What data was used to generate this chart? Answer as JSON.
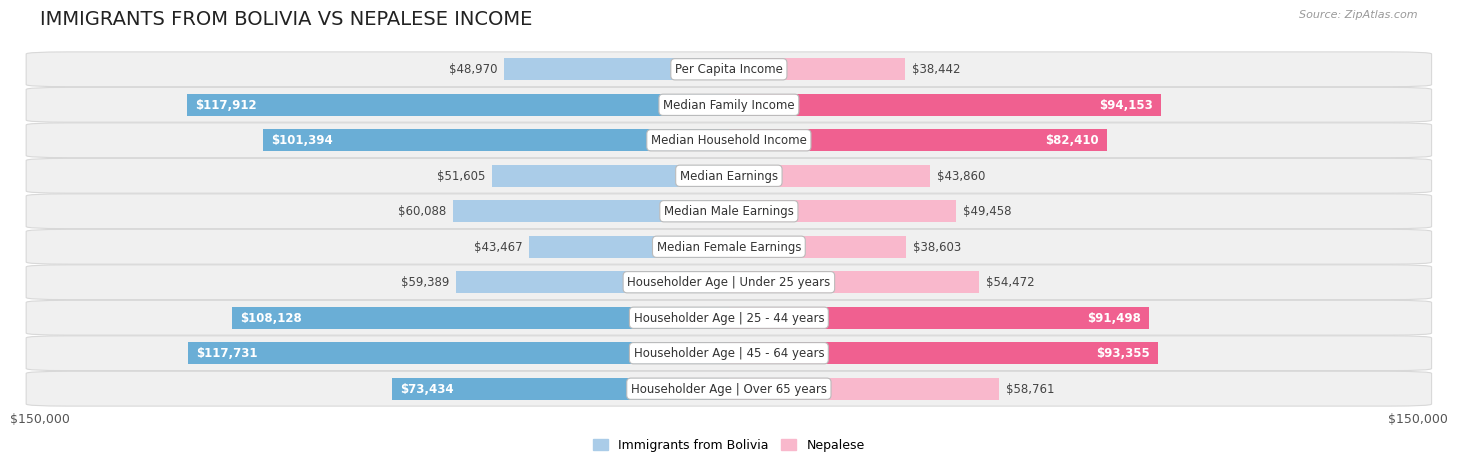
{
  "title": "IMMIGRANTS FROM BOLIVIA VS NEPALESE INCOME",
  "source": "Source: ZipAtlas.com",
  "categories": [
    "Per Capita Income",
    "Median Family Income",
    "Median Household Income",
    "Median Earnings",
    "Median Male Earnings",
    "Median Female Earnings",
    "Householder Age | Under 25 years",
    "Householder Age | 25 - 44 years",
    "Householder Age | 45 - 64 years",
    "Householder Age | Over 65 years"
  ],
  "bolivia_values": [
    48970,
    117912,
    101394,
    51605,
    60088,
    43467,
    59389,
    108128,
    117731,
    73434
  ],
  "nepalese_values": [
    38442,
    94153,
    82410,
    43860,
    49458,
    38603,
    54472,
    91498,
    93355,
    58761
  ],
  "bolivia_color_large": "#6aaed6",
  "bolivia_color_small": "#aacce8",
  "nepalese_color_large": "#f06090",
  "nepalese_color_small": "#f9b8cc",
  "large_threshold": 65000,
  "max_value": 150000,
  "bolivia_label": "Immigrants from Bolivia",
  "nepalese_label": "Nepalese",
  "background_color": "#ffffff",
  "row_bg_color": "#efefef",
  "title_fontsize": 14,
  "label_fontsize": 8.5,
  "tick_fontsize": 9,
  "bar_height": 0.62
}
